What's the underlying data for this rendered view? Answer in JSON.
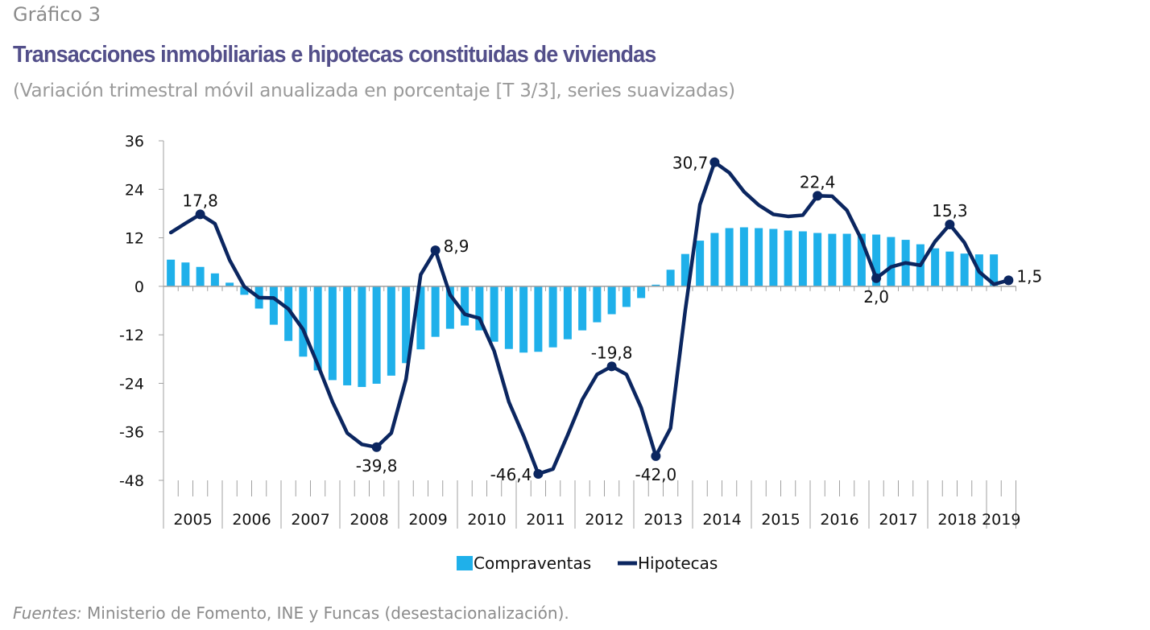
{
  "header": {
    "kicker": "Gráfico 3",
    "title": "Transacciones inmobiliarias e hipotecas constituidas de viviendas",
    "subtitle": "(Variación trimestral móvil anualizada en porcentaje [T 3/3], series suavizadas)"
  },
  "source": {
    "label": "Fuentes:",
    "text": " Ministerio de Fomento, INE y Funcas (desestacionalización)."
  },
  "colors": {
    "bars": "#1fb0ea",
    "line": "#0b2660",
    "axis": "#a0a0a0"
  },
  "chart_data": {
    "type": "bar+line",
    "frequency": "quarterly",
    "start": "2005-Q1",
    "years": [
      "2005",
      "2006",
      "2007",
      "2008",
      "2009",
      "2010",
      "2011",
      "2012",
      "2013",
      "2014",
      "2015",
      "2016",
      "2017",
      "2018",
      "2019"
    ],
    "ylim": [
      -48,
      36
    ],
    "yticks": [
      36,
      24,
      12,
      0,
      -12,
      -24,
      -36,
      -48
    ],
    "ytick_labels": [
      "36",
      "24",
      "12",
      "0",
      "-12",
      "-24",
      "-36",
      "-48"
    ],
    "grid": false,
    "legend": "bottom",
    "series": [
      {
        "name": "Compraventas",
        "type": "bar",
        "values": [
          6.6,
          5.9,
          4.8,
          3.2,
          0.9,
          -2.1,
          -5.5,
          -9.5,
          -13.5,
          -17.4,
          -20.8,
          -23.2,
          -24.5,
          -24.9,
          -24.1,
          -22.1,
          -19.0,
          -15.6,
          -12.5,
          -10.5,
          -9.7,
          -10.9,
          -13.7,
          -15.5,
          -16.4,
          -16.2,
          -15.1,
          -13.1,
          -10.9,
          -8.9,
          -6.9,
          -5.1,
          -2.9,
          0.4,
          4.1,
          8.0,
          11.3,
          13.2,
          14.4,
          14.6,
          14.4,
          14.2,
          13.8,
          13.6,
          13.2,
          13.0,
          13.0,
          13.0,
          12.8,
          12.2,
          11.5,
          10.4,
          9.4,
          8.6,
          8.1,
          7.9,
          7.9
        ]
      },
      {
        "name": "Hipotecas",
        "type": "line",
        "values": [
          13.3,
          15.6,
          17.8,
          15.5,
          6.5,
          -0.1,
          -2.8,
          -2.9,
          -5.6,
          -10.7,
          -19.4,
          -28.6,
          -36.3,
          -39.1,
          -39.8,
          -36.3,
          -23.0,
          2.9,
          8.9,
          -2.1,
          -6.9,
          -7.9,
          -16.0,
          -28.6,
          -37.0,
          -46.4,
          -45.2,
          -36.8,
          -28.0,
          -21.8,
          -19.8,
          -21.8,
          -30.0,
          -42.0,
          -35.1,
          -6.0,
          20.2,
          30.7,
          28.1,
          23.4,
          20.1,
          17.8,
          17.3,
          17.6,
          22.4,
          22.3,
          18.8,
          11.5,
          2.0,
          4.8,
          5.8,
          5.2,
          11.1,
          15.3,
          10.8,
          3.6,
          0.5,
          1.5
        ]
      }
    ],
    "annotations": [
      {
        "series": "Hipotecas",
        "period": "2005-Q3",
        "text": "17,8",
        "position": "above"
      },
      {
        "series": "Hipotecas",
        "period": "2008-Q3",
        "text": "-39,8",
        "position": "below"
      },
      {
        "series": "Hipotecas",
        "period": "2009-Q3",
        "text": "8,9",
        "position": "right"
      },
      {
        "series": "Hipotecas",
        "period": "2011-Q2",
        "text": "-46,4",
        "position": "left"
      },
      {
        "series": "Hipotecas",
        "period": "2012-Q3",
        "text": "-19,8",
        "position": "above"
      },
      {
        "series": "Hipotecas",
        "period": "2013-Q2",
        "text": "-42,0",
        "position": "below"
      },
      {
        "series": "Hipotecas",
        "period": "2014-Q2",
        "text": "30,7",
        "position": "left"
      },
      {
        "series": "Hipotecas",
        "period": "2016-Q1",
        "text": "22,4",
        "position": "above"
      },
      {
        "series": "Hipotecas",
        "period": "2017-Q1",
        "text": "2,0",
        "position": "below"
      },
      {
        "series": "Hipotecas",
        "period": "2018-Q2",
        "text": "15,3",
        "position": "above"
      },
      {
        "series": "Hipotecas",
        "period": "2019-Q2",
        "text": "1,5",
        "position": "right"
      }
    ]
  }
}
